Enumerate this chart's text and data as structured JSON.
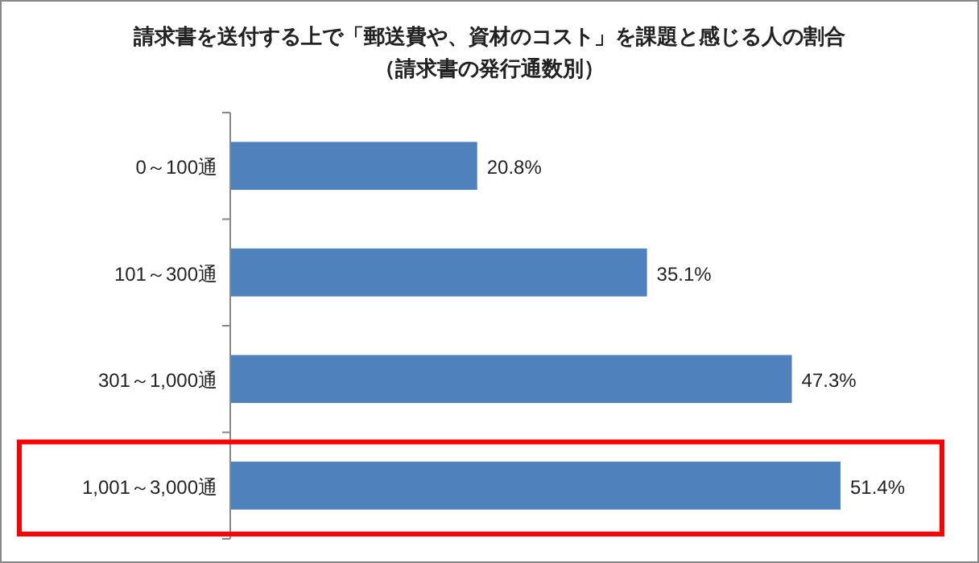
{
  "chart_data": {
    "type": "bar",
    "orientation": "horizontal",
    "title": "請求書を送付する上で「郵送費や、資材のコスト」を課題と感じる人の割合",
    "subtitle": "（請求書の発行通数別）",
    "categories": [
      "0～100通",
      "101～300通",
      "301～1,000通",
      "1,001～3,000通"
    ],
    "values": [
      20.8,
      35.1,
      47.3,
      51.4
    ],
    "value_labels": [
      "20.8%",
      "35.1%",
      "47.3%",
      "51.4%"
    ],
    "color": "#4f81bd"
  }
}
